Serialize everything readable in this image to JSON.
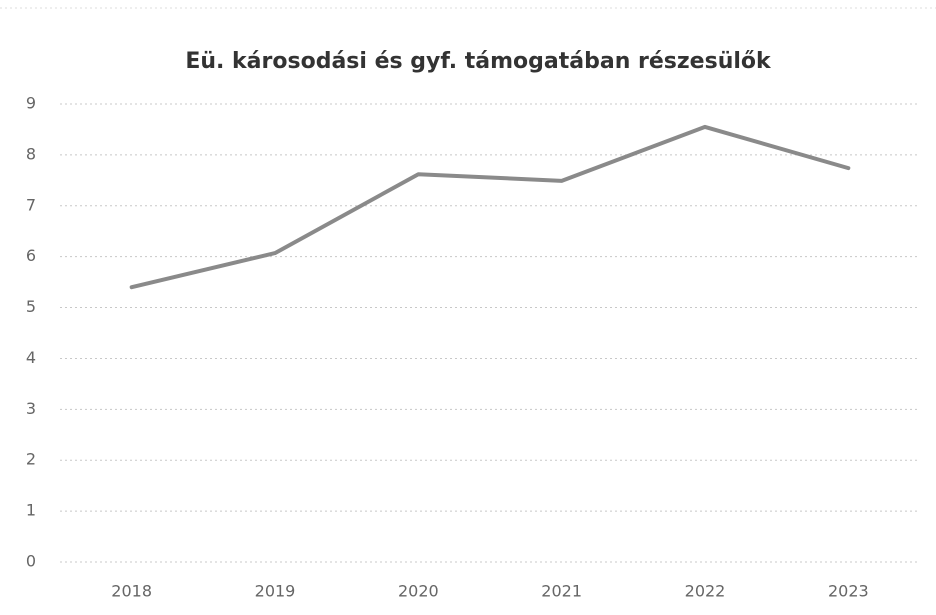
{
  "chart_data": {
    "type": "line",
    "title": "Eü. károsodási és gyf. támogatában részesülők",
    "categories": [
      "2018",
      "2019",
      "2020",
      "2021",
      "2022",
      "2023"
    ],
    "values": [
      5.4,
      6.07,
      7.62,
      7.49,
      8.55,
      7.74
    ],
    "color": "#8a8a8a",
    "ylim": [
      0,
      9
    ],
    "yticks": [
      0,
      1,
      2,
      3,
      4,
      5,
      6,
      7,
      8,
      9
    ],
    "grid": true
  }
}
